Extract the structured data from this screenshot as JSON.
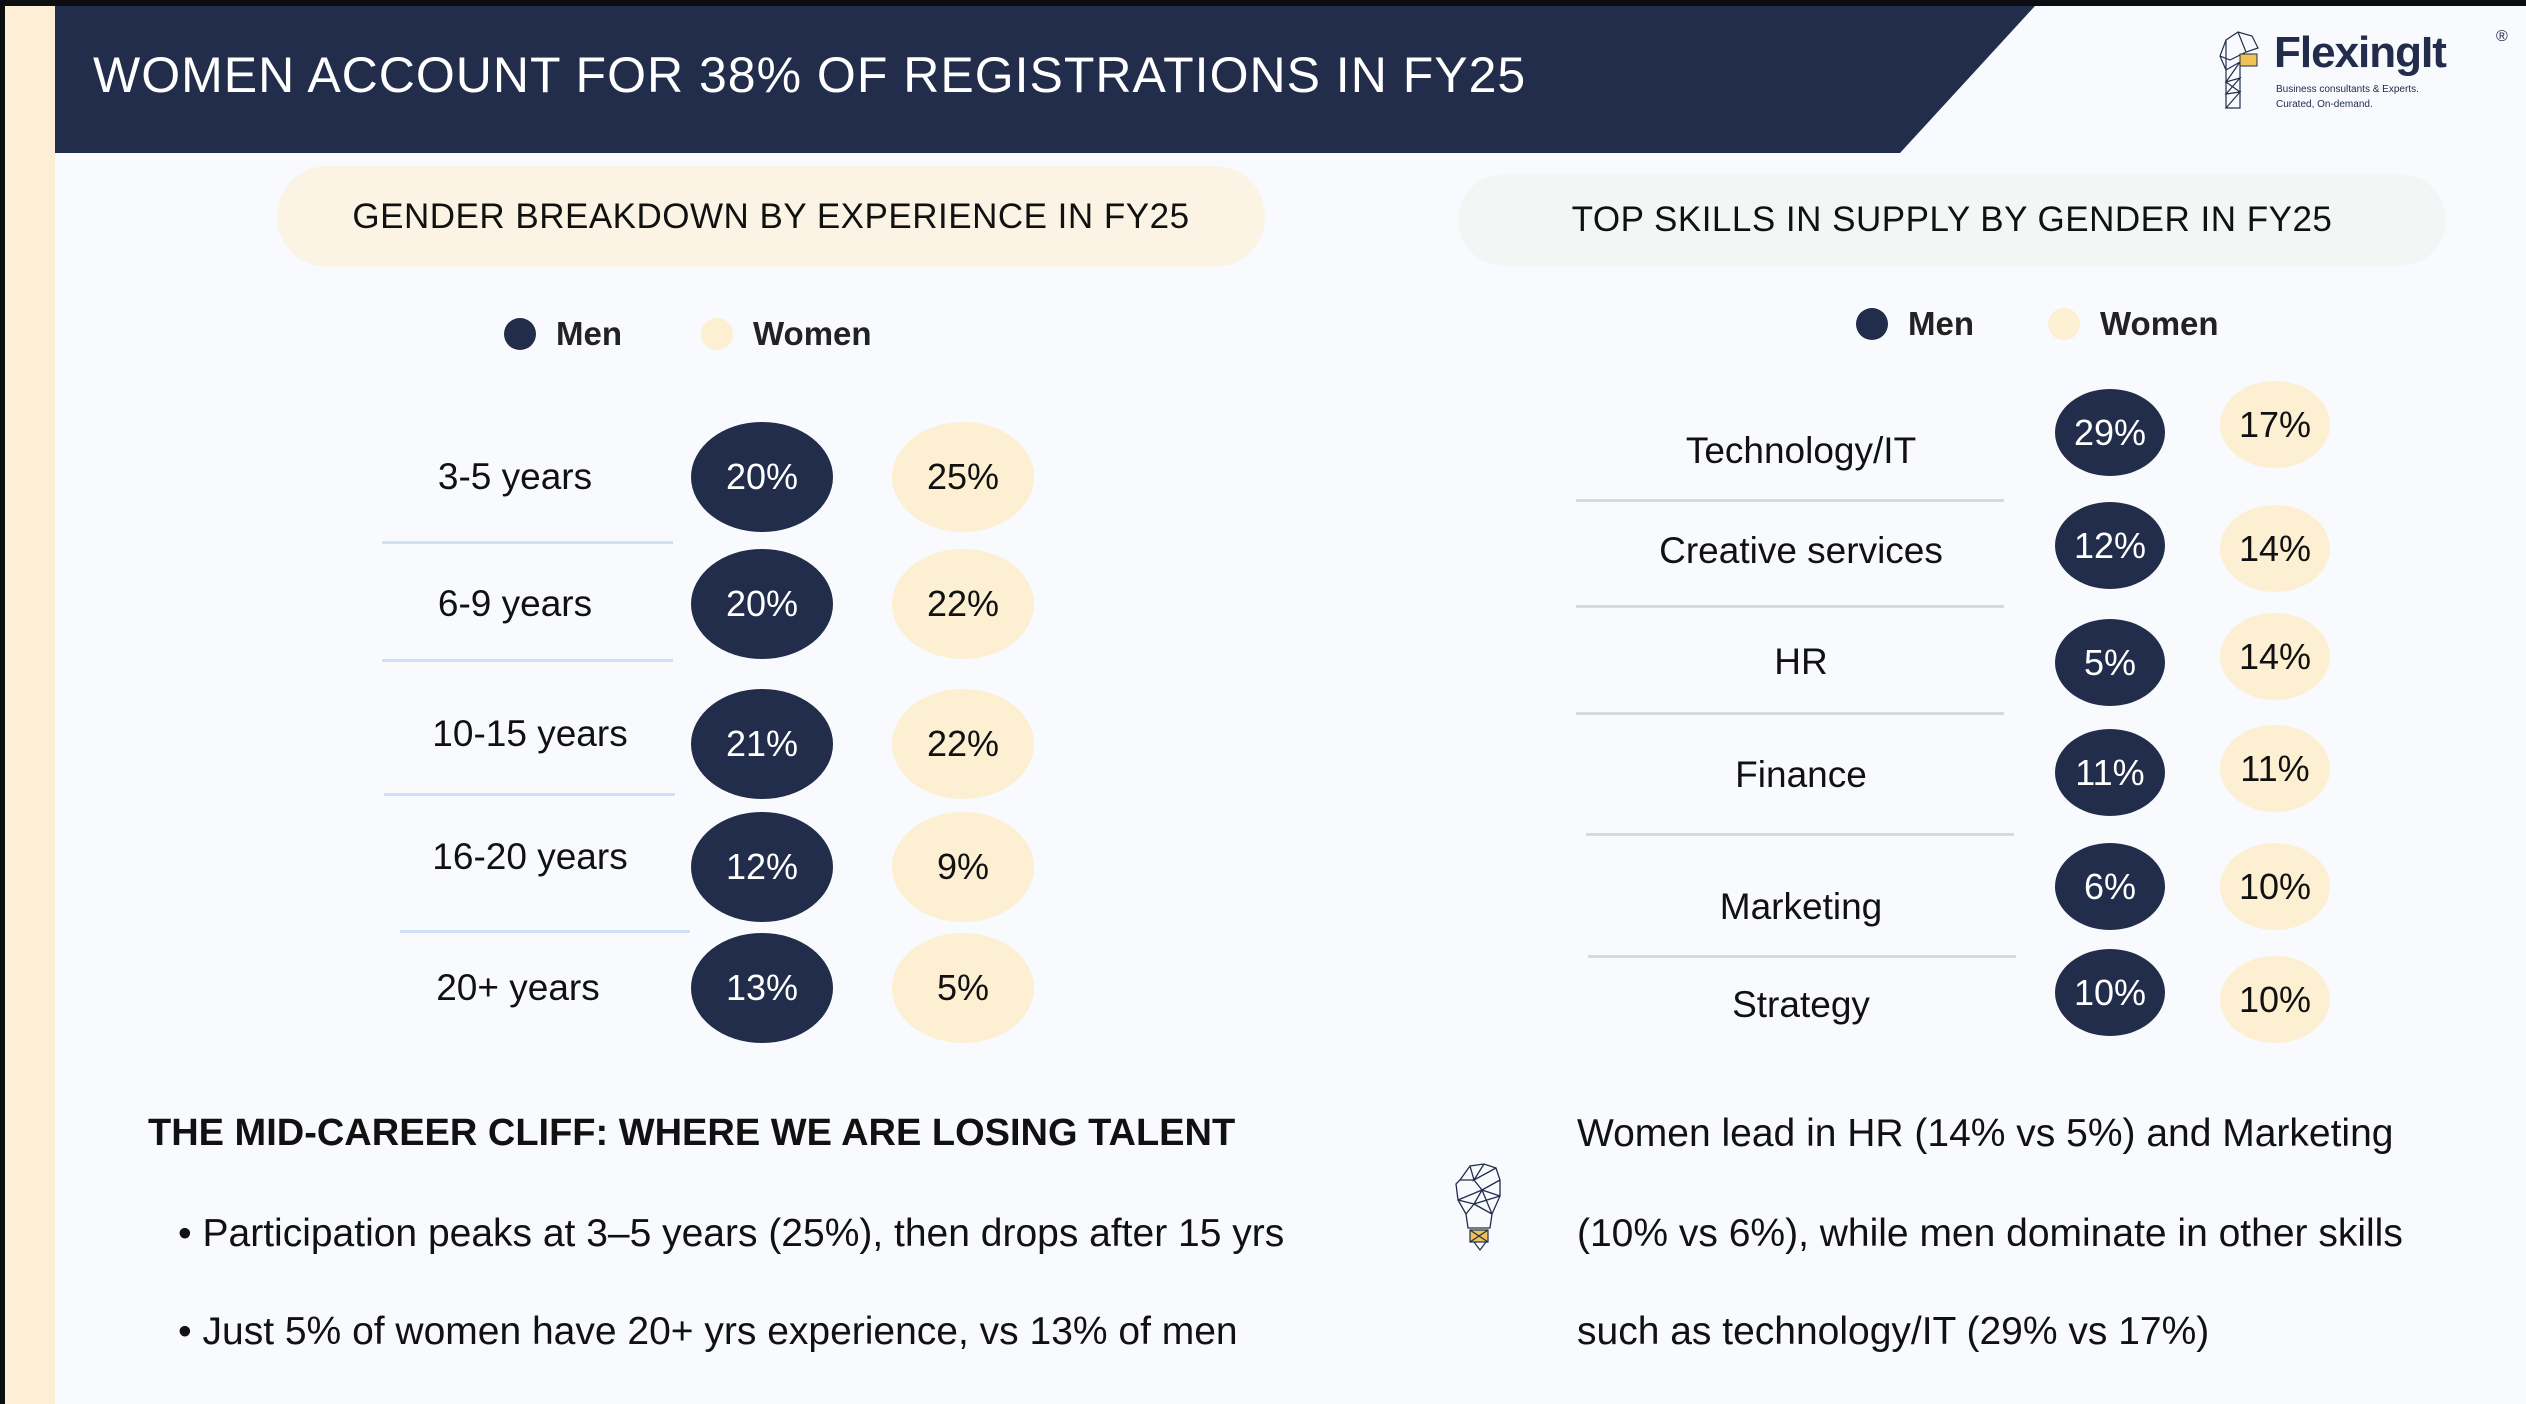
{
  "title": "WOMEN ACCOUNT FOR 38% OF REGISTRATIONS IN FY25",
  "logo": {
    "name": "FlexingIt",
    "registered": "®",
    "tagline1": "Business consultants & Experts.",
    "tagline2": "Curated, On-demand."
  },
  "colors": {
    "men": "#222d4b",
    "women": "#fcefd2"
  },
  "left": {
    "heading": "GENDER BREAKDOWN BY EXPERIENCE IN FY25",
    "legend_men": "Men",
    "legend_women": "Women",
    "rows": [
      {
        "label": "3-5 years",
        "men": "20%",
        "women": "25%"
      },
      {
        "label": "6-9 years",
        "men": "20%",
        "women": "22%"
      },
      {
        "label": "10-15 years",
        "men": "21%",
        "women": "22%"
      },
      {
        "label": "16-20 years",
        "men": "12%",
        "women": "9%"
      },
      {
        "label": "20+ years",
        "men": "13%",
        "women": "5%"
      }
    ]
  },
  "right": {
    "heading": "TOP SKILLS IN SUPPLY BY GENDER IN FY25",
    "legend_men": "Men",
    "legend_women": "Women",
    "rows": [
      {
        "label": "Technology/IT",
        "men": "29%",
        "women": "17%"
      },
      {
        "label": "Creative services",
        "men": "12%",
        "women": "14%"
      },
      {
        "label": "HR",
        "men": "5%",
        "women": "14%"
      },
      {
        "label": "Finance",
        "men": "11%",
        "women": "11%"
      },
      {
        "label": "Marketing",
        "men": "6%",
        "women": "10%"
      },
      {
        "label": "Strategy",
        "men": "10%",
        "women": "10%"
      }
    ]
  },
  "insight": {
    "heading": "THE MID-CAREER CLIFF: WHERE WE ARE LOSING TALENT",
    "bullets": [
      "Participation peaks at 3–5 years (25%), then drops after 15 yrs",
      "Just 5% of women have 20+ yrs experience, vs 13% of men"
    ]
  },
  "summary": {
    "lines": [
      "Women lead in HR (14% vs 5%) and Marketing",
      "(10% vs 6%), while men dominate in other skills",
      "such as technology/IT (29% vs 17%)"
    ]
  }
}
